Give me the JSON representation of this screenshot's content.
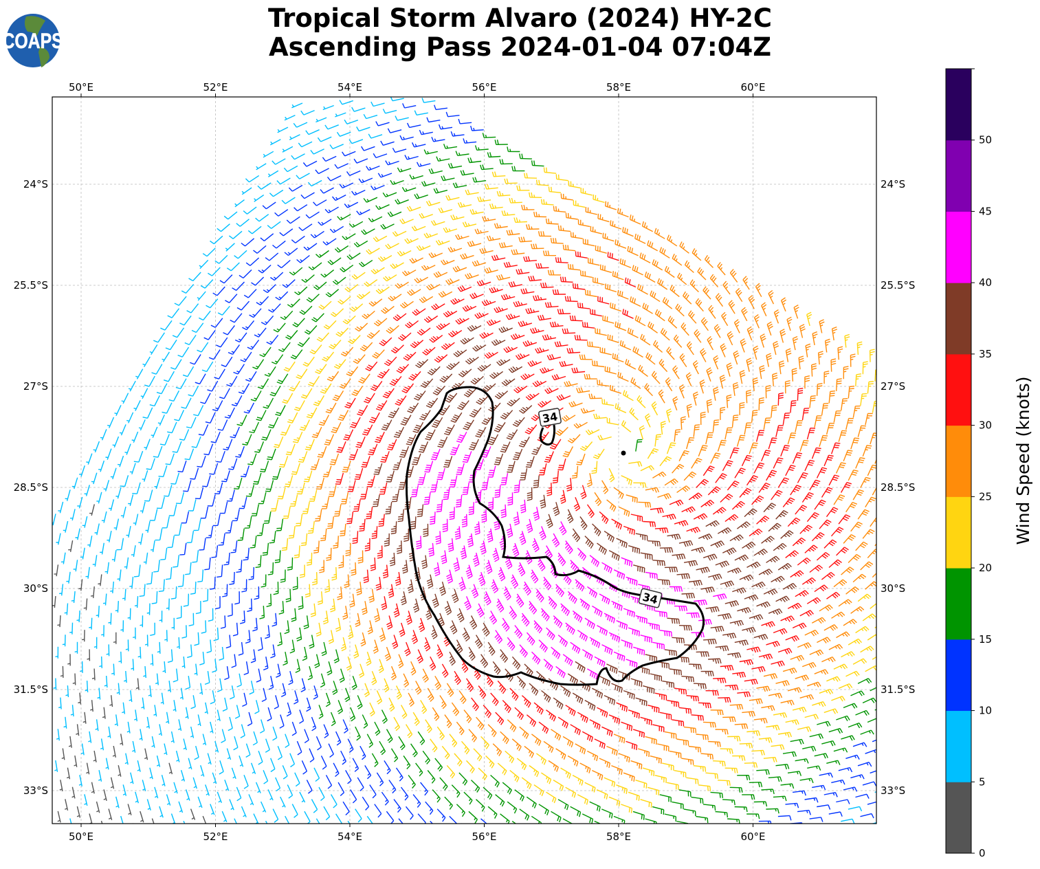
{
  "title": {
    "line1": "Tropical Storm Alvaro (2024) HY-2C",
    "line2": "Ascending Pass 2024-01-04 07:04Z"
  },
  "logo": {
    "text": "COAPS"
  },
  "chart_data": {
    "type": "wind-barb-map",
    "lon_ticks": [
      "50°E",
      "52°E",
      "54°E",
      "56°E",
      "58°E",
      "60°E"
    ],
    "lon_values": [
      50,
      52,
      54,
      56,
      58,
      60
    ],
    "lat_ticks": [
      "24°S",
      "25.5°S",
      "27°S",
      "28.5°S",
      "30°S",
      "31.5°S",
      "33°S"
    ],
    "lat_values": [
      -24,
      -25.5,
      -27,
      -28.5,
      -30,
      -31.5,
      -33
    ],
    "lon_range": [
      49.58,
      61.84
    ],
    "lat_range": [
      -33.5,
      -22.7
    ],
    "storm_center": {
      "lon": 58.07,
      "lat": -28.0
    },
    "contour": {
      "level": 34,
      "labels": [
        "34",
        "34"
      ]
    },
    "colorbar": {
      "label": "Wind Speed (knots)",
      "ticks": [
        "0",
        "5",
        "10",
        "15",
        "20",
        "25",
        "30",
        "35",
        "40",
        "45",
        "50"
      ],
      "bins": [
        0,
        5,
        10,
        15,
        20,
        25,
        30,
        35,
        40,
        45,
        50,
        55
      ],
      "colors": [
        "#555555",
        "#00bfff",
        "#0033ff",
        "#009400",
        "#ffd511",
        "#ff8c0a",
        "#ff1010",
        "#7f3b27",
        "#ff00ff",
        "#8000b0",
        "#2a005e"
      ]
    }
  }
}
